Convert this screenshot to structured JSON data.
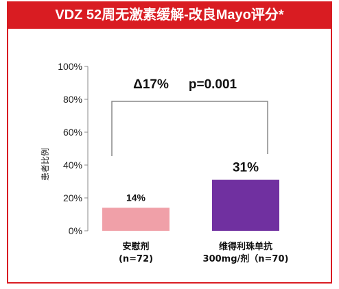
{
  "title": "VDZ 52周无激素缓解-改良Mayo评分*",
  "chart_data": {
    "type": "bar",
    "ylabel": "患者比例",
    "ylim": [
      0,
      100
    ],
    "yticks": [
      "0%",
      "20%",
      "40%",
      "60%",
      "80%",
      "100%"
    ],
    "categories": [
      {
        "line1": "安慰剂",
        "line2": "(n=72)"
      },
      {
        "line1": "维得利珠单抗",
        "line2": "300mg/剂（n=70)"
      }
    ],
    "values": [
      14,
      31
    ],
    "value_labels": [
      "14%",
      "31%"
    ],
    "colors": [
      "#f0a0a8",
      "#7030a0"
    ],
    "annotation": {
      "delta": "Δ17%",
      "p_value": "p=0.001"
    }
  }
}
